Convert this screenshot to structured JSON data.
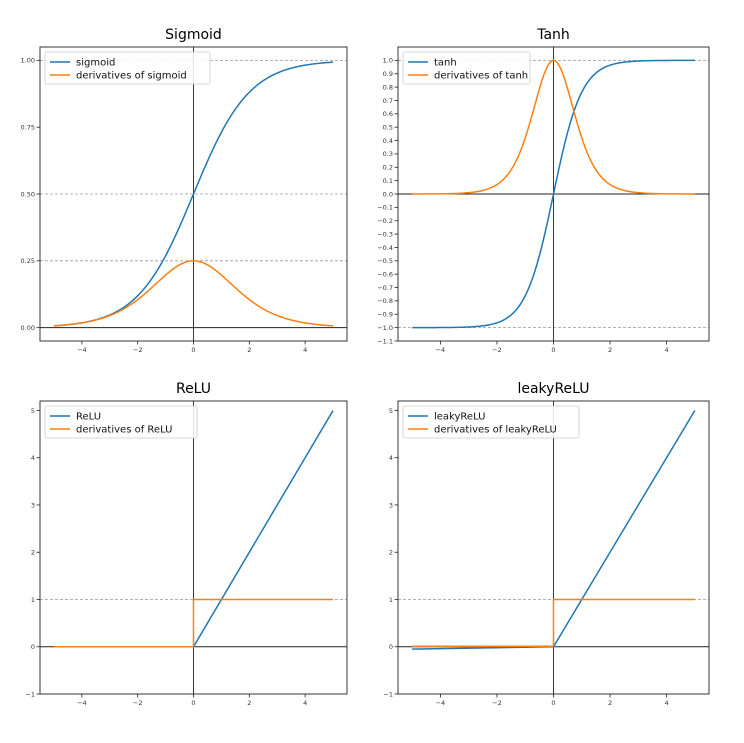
{
  "chart_data": [
    {
      "id": "sigmoid",
      "type": "line",
      "title": "Sigmoid",
      "xlim": [
        -5.5,
        5.5
      ],
      "ylim": [
        -0.05,
        1.05
      ],
      "xticks": [
        -4,
        -2,
        0,
        2,
        4
      ],
      "xtick_labels": [
        "−4",
        "−2",
        "0",
        "2",
        "4"
      ],
      "yticks": [
        0,
        0.25,
        0.5,
        0.75,
        1
      ],
      "ytick_labels": [
        "0.00",
        "0.25",
        "0.50",
        "0.75",
        "1.00"
      ],
      "dashed_hlines": [
        0.25,
        0.5,
        1
      ],
      "legend_position": "top-left",
      "series": [
        {
          "name": "sigmoid",
          "color": "#1f77b4",
          "x_range": [
            -5,
            5
          ],
          "samples": [
            0.0067,
            0.018,
            0.0474,
            0.1192,
            0.2689,
            0.5,
            0.7311,
            0.8808,
            0.9526,
            0.982,
            0.9933
          ]
        },
        {
          "name": "derivatives of sigmoid",
          "color": "#ff7f0e",
          "x_range": [
            -5,
            5
          ],
          "samples": [
            0.0066,
            0.0177,
            0.0452,
            0.105,
            0.1966,
            0.25,
            0.1966,
            0.105,
            0.0452,
            0.0177,
            0.0066
          ]
        }
      ]
    },
    {
      "id": "tanh",
      "type": "line",
      "title": "Tanh",
      "xlim": [
        -5.5,
        5.5
      ],
      "ylim": [
        -1.1,
        1.1
      ],
      "xticks": [
        -4,
        -2,
        0,
        2,
        4
      ],
      "xtick_labels": [
        "−4",
        "−2",
        "0",
        "2",
        "4"
      ],
      "yticks": [
        -1.1,
        -1.0,
        -0.9,
        -0.8,
        -0.7,
        -0.6,
        -0.5,
        -0.4,
        -0.3,
        -0.2,
        -0.1,
        0.0,
        0.1,
        0.2,
        0.3,
        0.4,
        0.5,
        0.6,
        0.7,
        0.8,
        0.9,
        1.0
      ],
      "ytick_labels": [
        "−1.1",
        "−1.0",
        "−0.9",
        "−0.8",
        "−0.7",
        "−0.6",
        "−0.5",
        "−0.4",
        "−0.3",
        "−0.2",
        "−0.1",
        "0.0",
        "0.1",
        "0.2",
        "0.3",
        "0.4",
        "0.5",
        "0.6",
        "0.7",
        "0.8",
        "0.9",
        "1.0"
      ],
      "dashed_hlines": [
        -1,
        1
      ],
      "legend_position": "top-left",
      "series": [
        {
          "name": "tanh",
          "color": "#1f77b4",
          "x_range": [
            -5,
            5
          ],
          "samples": [
            -0.9999,
            -0.9993,
            -0.9951,
            -0.964,
            -0.7616,
            0,
            0.7616,
            0.964,
            0.9951,
            0.9993,
            0.9999
          ]
        },
        {
          "name": "derivatives of tanh",
          "color": "#ff7f0e",
          "x_range": [
            -5,
            5
          ],
          "samples": [
            0.0002,
            0.0013,
            0.0099,
            0.0707,
            0.42,
            1.0,
            0.42,
            0.0707,
            0.0099,
            0.0013,
            0.0002
          ]
        }
      ]
    },
    {
      "id": "relu",
      "type": "line",
      "title": "ReLU",
      "xlim": [
        -5.5,
        5.5
      ],
      "ylim": [
        -1,
        5.2
      ],
      "xticks": [
        -4,
        -2,
        0,
        2,
        4
      ],
      "xtick_labels": [
        "−4",
        "−2",
        "0",
        "2",
        "4"
      ],
      "yticks": [
        -1,
        0,
        1,
        2,
        3,
        4,
        5
      ],
      "ytick_labels": [
        "−1",
        "0",
        "1",
        "2",
        "3",
        "4",
        "5"
      ],
      "dashed_hlines": [
        1
      ],
      "legend_position": "top-left",
      "series": [
        {
          "name": "ReLU",
          "color": "#1f77b4",
          "points": [
            [
              -5,
              0
            ],
            [
              0,
              0
            ],
            [
              5,
              5
            ]
          ]
        },
        {
          "name": "derivatives of ReLU",
          "color": "#ff7f0e",
          "points": [
            [
              -5,
              0
            ],
            [
              0,
              0
            ],
            [
              0,
              1
            ],
            [
              5,
              1
            ]
          ]
        }
      ]
    },
    {
      "id": "leakyrelu",
      "type": "line",
      "title": "leakyReLU",
      "xlim": [
        -5.5,
        5.5
      ],
      "ylim": [
        -1,
        5.2
      ],
      "xticks": [
        -4,
        -2,
        0,
        2,
        4
      ],
      "xtick_labels": [
        "−4",
        "−2",
        "0",
        "2",
        "4"
      ],
      "yticks": [
        -1,
        0,
        1,
        2,
        3,
        4,
        5
      ],
      "ytick_labels": [
        "−1",
        "0",
        "1",
        "2",
        "3",
        "4",
        "5"
      ],
      "dashed_hlines": [
        1
      ],
      "legend_position": "top-left",
      "series": [
        {
          "name": "leakyReLU",
          "color": "#1f77b4",
          "points": [
            [
              -5,
              -0.05
            ],
            [
              0,
              0
            ],
            [
              5,
              5
            ]
          ]
        },
        {
          "name": "derivatives of leakyReLU",
          "color": "#ff7f0e",
          "points": [
            [
              -5,
              0.01
            ],
            [
              0,
              0.01
            ],
            [
              0,
              1
            ],
            [
              5,
              1
            ]
          ]
        }
      ]
    }
  ]
}
